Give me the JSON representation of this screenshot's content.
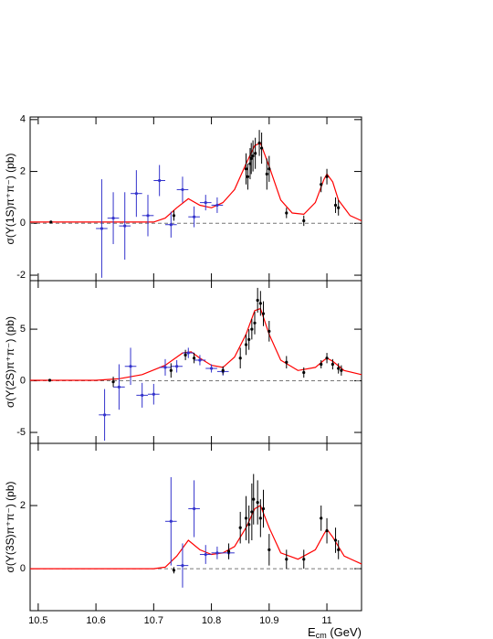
{
  "chart_data": [
    {
      "type": "scatter",
      "ylabel": "σ(Υ(1S)π⁺π⁻) (pb)",
      "ylim": [
        -2.21,
        4.1
      ],
      "yticks": [
        -2,
        0,
        2,
        4
      ],
      "hline": 0,
      "curve": {
        "color": "#ff0000",
        "x": [
          10.486,
          10.7,
          10.72,
          10.74,
          10.76,
          10.78,
          10.8,
          10.82,
          10.84,
          10.86,
          10.875,
          10.885,
          10.9,
          10.92,
          10.94,
          10.96,
          10.98,
          10.995,
          11.0,
          11.01,
          11.02,
          11.04,
          11.06
        ],
        "values": [
          0.05,
          0.05,
          0.2,
          0.6,
          0.95,
          0.7,
          0.6,
          0.8,
          1.3,
          2.3,
          3.0,
          3.1,
          2.2,
          0.9,
          0.4,
          0.35,
          0.8,
          1.7,
          1.9,
          1.6,
          0.9,
          0.3,
          0.1
        ]
      },
      "points": {
        "color": "#000000",
        "x": [
          10.522,
          10.735,
          10.86,
          10.863,
          10.867,
          10.869,
          10.872,
          10.876,
          10.883,
          10.887,
          10.896,
          10.9,
          10.93,
          10.96,
          10.99,
          11.0,
          11.015,
          11.02
        ],
        "values": [
          0.05,
          0.3,
          2.1,
          1.8,
          2.3,
          2.5,
          2.6,
          2.7,
          3.1,
          2.9,
          1.9,
          2.1,
          0.4,
          0.1,
          1.5,
          1.8,
          0.7,
          0.6
        ],
        "yerr": [
          0.05,
          0.2,
          0.6,
          0.5,
          0.6,
          0.6,
          0.6,
          0.6,
          0.5,
          0.6,
          0.6,
          0.5,
          0.2,
          0.2,
          0.3,
          0.3,
          0.3,
          0.3
        ]
      },
      "blue_points": {
        "color": "#3333cc",
        "x": [
          10.61,
          10.63,
          10.65,
          10.67,
          10.69,
          10.71,
          10.73,
          10.75,
          10.77,
          10.79,
          10.81
        ],
        "values": [
          -0.2,
          0.2,
          -0.1,
          1.15,
          0.3,
          1.65,
          -0.05,
          1.3,
          0.25,
          0.8,
          0.7
        ],
        "yerr": [
          1.9,
          1.0,
          1.3,
          0.9,
          0.8,
          0.6,
          0.5,
          0.5,
          0.4,
          0.3,
          0.3
        ],
        "xerr": [
          0.01,
          0.01,
          0.01,
          0.01,
          0.01,
          0.01,
          0.01,
          0.01,
          0.01,
          0.01,
          0.01
        ]
      }
    },
    {
      "type": "scatter",
      "ylabel": "σ(Υ(2S)π⁺π⁻) (pb)",
      "ylim": [
        -6.06,
        9.7
      ],
      "yticks": [
        -5,
        0,
        5
      ],
      "hline": 0,
      "curve": {
        "color": "#ff0000",
        "x": [
          10.486,
          10.6,
          10.64,
          10.68,
          10.72,
          10.75,
          10.765,
          10.78,
          10.8,
          10.82,
          10.84,
          10.86,
          10.875,
          10.885,
          10.9,
          10.92,
          10.95,
          10.98,
          10.995,
          11.0,
          11.01,
          11.03,
          11.06
        ],
        "values": [
          0.05,
          0.05,
          0.2,
          0.6,
          1.5,
          2.7,
          2.8,
          2.2,
          1.5,
          1.3,
          2.3,
          4.5,
          6.8,
          7.0,
          4.5,
          2.0,
          1.0,
          1.3,
          2.0,
          2.2,
          1.9,
          1.0,
          0.6
        ]
      },
      "points": {
        "color": "#000000",
        "x": [
          10.52,
          10.63,
          10.73,
          10.755,
          10.77,
          10.82,
          10.85,
          10.86,
          10.865,
          10.87,
          10.875,
          10.88,
          10.885,
          10.89,
          10.9,
          10.93,
          10.96,
          10.99,
          11.0,
          11.01,
          11.02,
          11.025
        ],
        "values": [
          0.05,
          -0.1,
          1.0,
          2.5,
          2.2,
          1.0,
          2.2,
          3.5,
          4.0,
          5.0,
          5.6,
          7.8,
          7.5,
          6.5,
          4.8,
          1.8,
          0.8,
          1.6,
          2.2,
          1.6,
          1.2,
          1.0
        ],
        "yerr": [
          0.1,
          0.5,
          0.7,
          0.5,
          0.5,
          0.4,
          1.0,
          1.0,
          1.0,
          1.0,
          1.1,
          1.2,
          1.2,
          1.2,
          1.0,
          0.6,
          0.5,
          0.4,
          0.5,
          0.5,
          0.5,
          0.5
        ]
      },
      "blue_points": {
        "color": "#3333cc",
        "x": [
          10.615,
          10.64,
          10.66,
          10.68,
          10.7,
          10.72,
          10.74,
          10.76,
          10.78,
          10.8,
          10.82
        ],
        "values": [
          -3.3,
          -0.6,
          1.4,
          -1.4,
          -1.3,
          1.3,
          1.4,
          2.7,
          2.0,
          1.2,
          0.9
        ],
        "yerr": [
          2.5,
          2.2,
          1.8,
          1.2,
          1.0,
          0.8,
          0.6,
          0.5,
          0.5,
          0.4,
          0.4
        ],
        "xerr": [
          0.01,
          0.01,
          0.01,
          0.01,
          0.01,
          0.01,
          0.01,
          0.01,
          0.01,
          0.01,
          0.01
        ]
      }
    },
    {
      "type": "scatter",
      "ylabel": "σ(Υ(3S)π⁺π⁻) (pb)",
      "ylim": [
        -1.33,
        3.97
      ],
      "yticks": [
        0,
        2
      ],
      "hline": 0,
      "xlabel": [
        "E",
        "cm",
        " (GeV)"
      ],
      "xlim": [
        10.486,
        11.06
      ],
      "xticks": [
        10.5,
        10.6,
        10.7,
        10.8,
        10.9,
        11
      ],
      "curve": {
        "color": "#ff0000",
        "x": [
          10.486,
          10.7,
          10.72,
          10.74,
          10.76,
          10.78,
          10.8,
          10.82,
          10.84,
          10.86,
          10.875,
          10.885,
          10.9,
          10.92,
          10.95,
          10.98,
          10.995,
          11.0,
          11.01,
          11.03,
          11.06
        ],
        "values": [
          0,
          0,
          0.05,
          0.4,
          0.9,
          0.6,
          0.45,
          0.5,
          0.7,
          1.3,
          1.9,
          2.0,
          1.3,
          0.5,
          0.3,
          0.6,
          1.1,
          1.25,
          1.0,
          0.4,
          0.15
        ]
      },
      "points": {
        "color": "#000000",
        "x": [
          10.735,
          10.83,
          10.85,
          10.86,
          10.865,
          10.87,
          10.873,
          10.88,
          10.885,
          10.89,
          10.9,
          10.93,
          10.96,
          10.99,
          11.0,
          11.015,
          11.02
        ],
        "values": [
          -0.05,
          0.55,
          1.3,
          1.6,
          1.4,
          1.8,
          2.2,
          2.1,
          1.6,
          1.9,
          0.6,
          0.3,
          0.3,
          1.6,
          1.2,
          0.9,
          0.6
        ],
        "yerr": [
          0.1,
          0.25,
          0.5,
          0.7,
          0.6,
          0.9,
          0.8,
          0.7,
          0.6,
          0.6,
          0.5,
          0.3,
          0.3,
          0.4,
          0.4,
          0.4,
          0.3
        ]
      },
      "blue_points": {
        "color": "#3333cc",
        "x": [
          10.73,
          10.75,
          10.77,
          10.79,
          10.81,
          10.83
        ],
        "values": [
          1.5,
          0.1,
          1.9,
          0.45,
          0.5,
          0.5
        ],
        "yerr": [
          1.4,
          0.7,
          0.9,
          0.3,
          0.2,
          0.2
        ],
        "xerr": [
          0.01,
          0.01,
          0.01,
          0.01,
          0.01,
          0.01
        ]
      }
    }
  ]
}
